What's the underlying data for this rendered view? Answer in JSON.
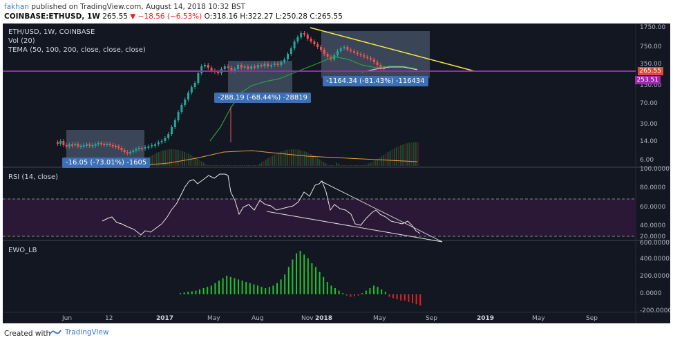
{
  "header": {
    "author": "fakhan",
    "published_text": "published on TradingView.com, August 14, 2018 10:32 BST",
    "symbol_line": {
      "symbol": "COINBASE:ETHUSD, 1W",
      "last": "265.55",
      "change": "−18.56 (−6.53%)",
      "ohlc": "O:318.16 H:322.27 L:250.28 C:265.55"
    }
  },
  "main_pane": {
    "title": "ETH/USD, 1W, COINBASE",
    "vol_label": "Vol (20)",
    "tema_label": "TEMA (50, 100, 200, close, close, close)",
    "price_axis": [
      "1750.00",
      "750.00",
      "350.00",
      "150.00",
      "70.00",
      "30.00",
      "14.00",
      "6.00"
    ],
    "price_badge": "265.55",
    "purple_badge": "253.51",
    "measures": [
      {
        "text": "-16.05 (-73.01%) -1605"
      },
      {
        "text": "-288.19 (-68.44%) -28819"
      },
      {
        "text": "-1164.34 (-81.43%) -116434"
      }
    ]
  },
  "rsi_pane": {
    "title": "RSI (14, close)",
    "axis": [
      "100.0000",
      "80.0000",
      "60.0000",
      "40.0000",
      "20.0000"
    ]
  },
  "ewo_pane": {
    "title": "EWO_LB",
    "axis": [
      "600.0000",
      "400.0000",
      "200.0000",
      "0.0000",
      "-200.0000"
    ]
  },
  "time_axis": [
    {
      "label": "Jun",
      "bold": false
    },
    {
      "label": "12",
      "bold": false
    },
    {
      "label": "2017",
      "bold": true
    },
    {
      "label": "May",
      "bold": false
    },
    {
      "label": "Aug",
      "bold": false
    },
    {
      "label": "Nov",
      "bold": false
    },
    {
      "label": "2018",
      "bold": true
    },
    {
      "label": "May",
      "bold": false
    },
    {
      "label": "Sep",
      "bold": false
    },
    {
      "label": "2019",
      "bold": true
    },
    {
      "label": "May",
      "bold": false
    },
    {
      "label": "Sep",
      "bold": false
    }
  ],
  "footer": {
    "created_with": "Created with",
    "brand": "TradingView"
  },
  "colors": {
    "background": "#131722",
    "up": "#26a69a",
    "down": "#ef5350",
    "trendline": "#f5ec42",
    "support": "#8e24aa",
    "measure_box": "#3c6fb5"
  }
}
